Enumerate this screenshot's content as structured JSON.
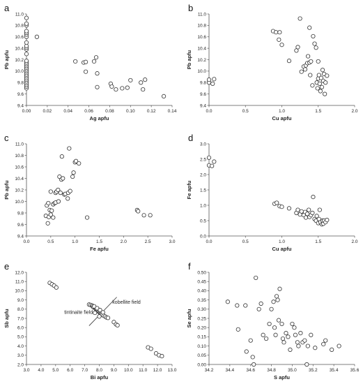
{
  "chart_data": [
    {
      "letter": "a",
      "type": "scatter",
      "xlabel": "Ag apfu",
      "ylabel": "Pb apfu",
      "xlim": [
        0,
        0.14
      ],
      "ylim": [
        9.4,
        11.0
      ],
      "xticks": [
        0,
        0.02,
        0.04,
        0.06,
        0.08,
        0.1,
        0.12,
        0.14
      ],
      "xtick_labels": [
        "0.00",
        "0.02",
        "0.04",
        "0.06",
        "0.08",
        "0.10",
        "0.12",
        "0.14"
      ],
      "yticks": [
        9.4,
        9.6,
        9.8,
        10.0,
        10.2,
        10.4,
        10.6,
        10.8,
        11.0
      ],
      "ytick_labels": [
        "9.4",
        "9.6",
        "9.8",
        "10.0",
        "10.2",
        "10.4",
        "10.6",
        "10.8",
        "11.0"
      ],
      "points": [
        [
          0,
          9.7
        ],
        [
          0,
          9.73
        ],
        [
          0,
          9.76
        ],
        [
          0,
          9.79
        ],
        [
          0,
          9.82
        ],
        [
          0,
          9.85
        ],
        [
          0,
          9.88
        ],
        [
          0,
          9.91
        ],
        [
          0,
          9.94
        ],
        [
          0,
          9.97
        ],
        [
          0,
          10.0
        ],
        [
          0,
          10.03
        ],
        [
          0,
          10.06
        ],
        [
          0,
          10.09
        ],
        [
          0,
          10.12
        ],
        [
          0,
          10.15
        ],
        [
          0,
          10.18
        ],
        [
          0,
          10.3
        ],
        [
          0,
          10.38
        ],
        [
          0,
          10.41
        ],
        [
          0,
          10.44
        ],
        [
          0,
          10.5
        ],
        [
          0,
          10.6
        ],
        [
          0,
          10.64
        ],
        [
          0,
          10.67
        ],
        [
          0,
          10.7
        ],
        [
          0,
          10.8
        ],
        [
          0,
          10.83
        ],
        [
          0,
          10.93
        ],
        [
          0.01,
          10.6
        ],
        [
          0.047,
          10.17
        ],
        [
          0.055,
          10.15
        ],
        [
          0.057,
          10.16
        ],
        [
          0.057,
          9.99
        ],
        [
          0.065,
          10.17
        ],
        [
          0.067,
          10.24
        ],
        [
          0.068,
          9.96
        ],
        [
          0.068,
          9.72
        ],
        [
          0.081,
          9.78
        ],
        [
          0.082,
          9.73
        ],
        [
          0.086,
          9.68
        ],
        [
          0.092,
          9.7
        ],
        [
          0.097,
          9.71
        ],
        [
          0.1,
          9.84
        ],
        [
          0.11,
          9.8
        ],
        [
          0.112,
          9.68
        ],
        [
          0.114,
          9.85
        ],
        [
          0.132,
          9.56
        ]
      ]
    },
    {
      "letter": "b",
      "type": "scatter",
      "xlabel": "Cu apfu",
      "ylabel": "Pb apfu",
      "xlim": [
        0,
        2.0
      ],
      "ylim": [
        9.4,
        11.0
      ],
      "xticks": [
        0,
        0.5,
        1.0,
        1.5,
        2.0
      ],
      "xtick_labels": [
        "0.0",
        "0.5",
        "1.0",
        "1.5",
        "2.0"
      ],
      "yticks": [
        9.4,
        9.6,
        9.8,
        10.0,
        10.2,
        10.4,
        10.6,
        10.8,
        11.0
      ],
      "ytick_labels": [
        "9.4",
        "9.6",
        "9.8",
        "10.0",
        "10.2",
        "10.4",
        "10.6",
        "10.8",
        "11.0"
      ],
      "points": [
        [
          0,
          9.8
        ],
        [
          0,
          9.85
        ],
        [
          0.05,
          9.78
        ],
        [
          0.07,
          9.86
        ],
        [
          0.88,
          10.7
        ],
        [
          0.92,
          10.68
        ],
        [
          0.97,
          10.68
        ],
        [
          0.96,
          10.55
        ],
        [
          1.0,
          10.46
        ],
        [
          1.1,
          10.18
        ],
        [
          1.2,
          10.36
        ],
        [
          1.22,
          10.42
        ],
        [
          1.25,
          10.92
        ],
        [
          1.27,
          9.99
        ],
        [
          1.3,
          10.08
        ],
        [
          1.32,
          10.03
        ],
        [
          1.33,
          10.1
        ],
        [
          1.35,
          10.14
        ],
        [
          1.36,
          10.26
        ],
        [
          1.38,
          10.76
        ],
        [
          1.38,
          10.15
        ],
        [
          1.39,
          9.93
        ],
        [
          1.4,
          10.17
        ],
        [
          1.42,
          9.75
        ],
        [
          1.43,
          10.61
        ],
        [
          1.45,
          10.48
        ],
        [
          1.47,
          10.41
        ],
        [
          1.48,
          9.8
        ],
        [
          1.49,
          9.7
        ],
        [
          1.5,
          9.87
        ],
        [
          1.5,
          10.17
        ],
        [
          1.51,
          9.93
        ],
        [
          1.52,
          9.78
        ],
        [
          1.53,
          9.65
        ],
        [
          1.54,
          9.88
        ],
        [
          1.55,
          9.72
        ],
        [
          1.56,
          10.02
        ],
        [
          1.57,
          9.83
        ],
        [
          1.58,
          9.95
        ],
        [
          1.59,
          9.6
        ],
        [
          1.6,
          9.8
        ],
        [
          1.62,
          9.92
        ]
      ]
    },
    {
      "letter": "c",
      "type": "scatter",
      "xlabel": "Fe apfu",
      "ylabel": "Pb apfu",
      "xlim": [
        0,
        3.0
      ],
      "ylim": [
        9.4,
        11.0
      ],
      "xticks": [
        0,
        0.5,
        1.0,
        1.5,
        2.0,
        2.5,
        3.0
      ],
      "xtick_labels": [
        "0.0",
        "0.5",
        "1.0",
        "1.5",
        "2.0",
        "2.5",
        "3.0"
      ],
      "yticks": [
        9.4,
        9.6,
        9.8,
        10.0,
        10.2,
        10.4,
        10.6,
        10.8,
        11.0
      ],
      "ytick_labels": [
        "9.4",
        "9.6",
        "9.8",
        "10.0",
        "10.2",
        "10.4",
        "10.6",
        "10.8",
        "11.0"
      ],
      "points": [
        [
          0.4,
          9.75
        ],
        [
          0.42,
          9.93
        ],
        [
          0.44,
          9.62
        ],
        [
          0.45,
          9.97
        ],
        [
          0.46,
          9.73
        ],
        [
          0.48,
          9.85
        ],
        [
          0.5,
          9.77
        ],
        [
          0.5,
          10.17
        ],
        [
          0.52,
          9.84
        ],
        [
          0.55,
          9.72
        ],
        [
          0.55,
          9.95
        ],
        [
          0.58,
          9.97
        ],
        [
          0.6,
          10.15
        ],
        [
          0.6,
          9.98
        ],
        [
          0.62,
          10.17
        ],
        [
          0.65,
          10.2
        ],
        [
          0.66,
          10.0
        ],
        [
          0.68,
          10.43
        ],
        [
          0.7,
          10.15
        ],
        [
          0.72,
          10.38
        ],
        [
          0.73,
          10.78
        ],
        [
          0.75,
          10.4
        ],
        [
          0.78,
          10.12
        ],
        [
          0.8,
          10.13
        ],
        [
          0.85,
          10.05
        ],
        [
          0.86,
          10.15
        ],
        [
          0.88,
          10.92
        ],
        [
          0.9,
          10.18
        ],
        [
          0.95,
          10.43
        ],
        [
          0.97,
          10.5
        ],
        [
          1.0,
          10.68
        ],
        [
          1.02,
          10.7
        ],
        [
          1.08,
          10.66
        ],
        [
          1.25,
          9.72
        ],
        [
          2.28,
          9.85
        ],
        [
          2.3,
          9.83
        ],
        [
          2.42,
          9.76
        ],
        [
          2.55,
          9.76
        ]
      ]
    },
    {
      "letter": "d",
      "type": "scatter",
      "xlabel": "Cu apfu",
      "ylabel": "Fe apfu",
      "xlim": [
        0,
        2.0
      ],
      "ylim": [
        0,
        3.0
      ],
      "xticks": [
        0,
        0.5,
        1.0,
        1.5,
        2.0
      ],
      "xtick_labels": [
        "0.0",
        "0.5",
        "1.0",
        "1.5",
        "2.0"
      ],
      "yticks": [
        0,
        0.5,
        1.0,
        1.5,
        2.0,
        2.5,
        3.0
      ],
      "ytick_labels": [
        "0.0",
        "0.5",
        "1.0",
        "1.5",
        "2.0",
        "2.5",
        "3.0"
      ],
      "points": [
        [
          0,
          2.55
        ],
        [
          0,
          2.3
        ],
        [
          0.04,
          2.28
        ],
        [
          0.07,
          2.42
        ],
        [
          0.9,
          1.05
        ],
        [
          0.93,
          1.08
        ],
        [
          0.97,
          0.97
        ],
        [
          1.0,
          0.95
        ],
        [
          1.1,
          0.9
        ],
        [
          1.2,
          0.75
        ],
        [
          1.22,
          0.85
        ],
        [
          1.25,
          0.7
        ],
        [
          1.27,
          0.8
        ],
        [
          1.3,
          0.68
        ],
        [
          1.32,
          0.78
        ],
        [
          1.33,
          0.6
        ],
        [
          1.35,
          0.72
        ],
        [
          1.37,
          0.85
        ],
        [
          1.38,
          0.62
        ],
        [
          1.4,
          0.68
        ],
        [
          1.42,
          0.75
        ],
        [
          1.43,
          1.27
        ],
        [
          1.45,
          0.55
        ],
        [
          1.47,
          0.5
        ],
        [
          1.48,
          0.65
        ],
        [
          1.5,
          0.42
        ],
        [
          1.51,
          0.55
        ],
        [
          1.52,
          0.85
        ],
        [
          1.53,
          0.45
        ],
        [
          1.55,
          0.38
        ],
        [
          1.56,
          0.5
        ],
        [
          1.57,
          0.4
        ],
        [
          1.58,
          0.5
        ],
        [
          1.6,
          0.45
        ],
        [
          1.62,
          0.52
        ]
      ]
    },
    {
      "letter": "e",
      "type": "scatter",
      "xlabel": "Bi apfu",
      "ylabel": "Sb apfu",
      "xlim": [
        3.0,
        13.0
      ],
      "ylim": [
        2.0,
        12.0
      ],
      "xticks": [
        3,
        4,
        5,
        6,
        7,
        8,
        9,
        10,
        11,
        12,
        13
      ],
      "xtick_labels": [
        "3.0",
        "4.0",
        "5.0",
        "6.0",
        "7.0",
        "8.0",
        "9.0",
        "10.0",
        "11.0",
        "12.0",
        "13.0"
      ],
      "yticks": [
        2,
        3,
        4,
        5,
        6,
        7,
        8,
        9,
        10,
        11,
        12
      ],
      "ytick_labels": [
        "2.0",
        "3.0",
        "4.0",
        "5.0",
        "6.0",
        "7.0",
        "8.0",
        "9.0",
        "10.0",
        "11.0",
        "12.0"
      ],
      "annotations": [
        "kobellite field",
        "tintinaite field"
      ],
      "points": [
        [
          4.6,
          10.85
        ],
        [
          4.75,
          10.7
        ],
        [
          4.9,
          10.55
        ],
        [
          5.05,
          10.35
        ],
        [
          7.3,
          8.5
        ],
        [
          7.4,
          8.45
        ],
        [
          7.5,
          8.4
        ],
        [
          7.55,
          8.3
        ],
        [
          7.6,
          8.2
        ],
        [
          7.7,
          8.15
        ],
        [
          7.75,
          8.05
        ],
        [
          7.8,
          8.0
        ],
        [
          7.85,
          7.9
        ],
        [
          7.9,
          7.85
        ],
        [
          7.95,
          7.75
        ],
        [
          8.0,
          7.7
        ],
        [
          8.05,
          7.6
        ],
        [
          8.1,
          7.55
        ],
        [
          8.15,
          7.5
        ],
        [
          8.2,
          7.4
        ],
        [
          8.3,
          7.3
        ],
        [
          8.4,
          7.2
        ],
        [
          8.5,
          7.1
        ],
        [
          8.6,
          7.05
        ],
        [
          7.65,
          8.3
        ],
        [
          7.85,
          8.1
        ],
        [
          8.05,
          7.9
        ],
        [
          8.25,
          7.65
        ],
        [
          8.0,
          7.2
        ],
        [
          7.7,
          7.6
        ],
        [
          9.0,
          6.6
        ],
        [
          9.15,
          6.35
        ],
        [
          9.25,
          6.25
        ],
        [
          11.35,
          3.85
        ],
        [
          11.55,
          3.7
        ],
        [
          11.9,
          3.2
        ],
        [
          12.1,
          3.0
        ],
        [
          12.3,
          2.9
        ]
      ]
    },
    {
      "letter": "f",
      "type": "scatter",
      "xlabel": "S apfu",
      "ylabel": "Se apfu",
      "xlim": [
        34.2,
        35.6
      ],
      "ylim": [
        0,
        0.5
      ],
      "xticks": [
        34.2,
        34.4,
        34.6,
        34.8,
        35.0,
        35.2,
        35.4,
        35.6
      ],
      "xtick_labels": [
        "34.2",
        "34.4",
        "34.6",
        "34.8",
        "35.0",
        "35.2",
        "35.4",
        "35.6"
      ],
      "yticks": [
        0,
        0.05,
        0.1,
        0.15,
        0.2,
        0.25,
        0.3,
        0.35,
        0.4,
        0.45,
        0.5
      ],
      "ytick_labels": [
        "0.00",
        "0.05",
        "0.10",
        "0.15",
        "0.20",
        "0.25",
        "0.30",
        "0.35",
        "0.40",
        "0.45",
        "0.50"
      ],
      "points": [
        [
          34.38,
          0.34
        ],
        [
          34.47,
          0.32
        ],
        [
          34.48,
          0.19
        ],
        [
          34.55,
          0.32
        ],
        [
          34.56,
          0.07
        ],
        [
          34.6,
          0.13
        ],
        [
          34.62,
          0.04
        ],
        [
          34.63,
          0.0
        ],
        [
          34.65,
          0.47
        ],
        [
          34.68,
          0.3
        ],
        [
          34.7,
          0.33
        ],
        [
          34.72,
          0.16
        ],
        [
          34.75,
          0.14
        ],
        [
          34.78,
          0.22
        ],
        [
          34.8,
          0.3
        ],
        [
          34.82,
          0.34
        ],
        [
          34.83,
          0.2
        ],
        [
          34.84,
          0.16
        ],
        [
          34.85,
          0.37
        ],
        [
          34.86,
          0.35
        ],
        [
          34.87,
          0.24
        ],
        [
          34.88,
          0.41
        ],
        [
          34.9,
          0.22
        ],
        [
          34.91,
          0.14
        ],
        [
          34.92,
          0.12
        ],
        [
          34.94,
          0.17
        ],
        [
          34.96,
          0.15
        ],
        [
          34.98,
          0.08
        ],
        [
          35.0,
          0.22
        ],
        [
          35.02,
          0.2
        ],
        [
          35.03,
          0.16
        ],
        [
          35.05,
          0.12
        ],
        [
          35.06,
          0.1
        ],
        [
          35.08,
          0.17
        ],
        [
          35.1,
          0.12
        ],
        [
          35.12,
          0.13
        ],
        [
          35.14,
          0.0
        ],
        [
          35.15,
          0.1
        ],
        [
          35.18,
          0.16
        ],
        [
          35.22,
          0.09
        ],
        [
          35.3,
          0.11
        ],
        [
          35.32,
          0.13
        ],
        [
          35.38,
          0.08
        ],
        [
          35.45,
          0.1
        ]
      ]
    }
  ]
}
